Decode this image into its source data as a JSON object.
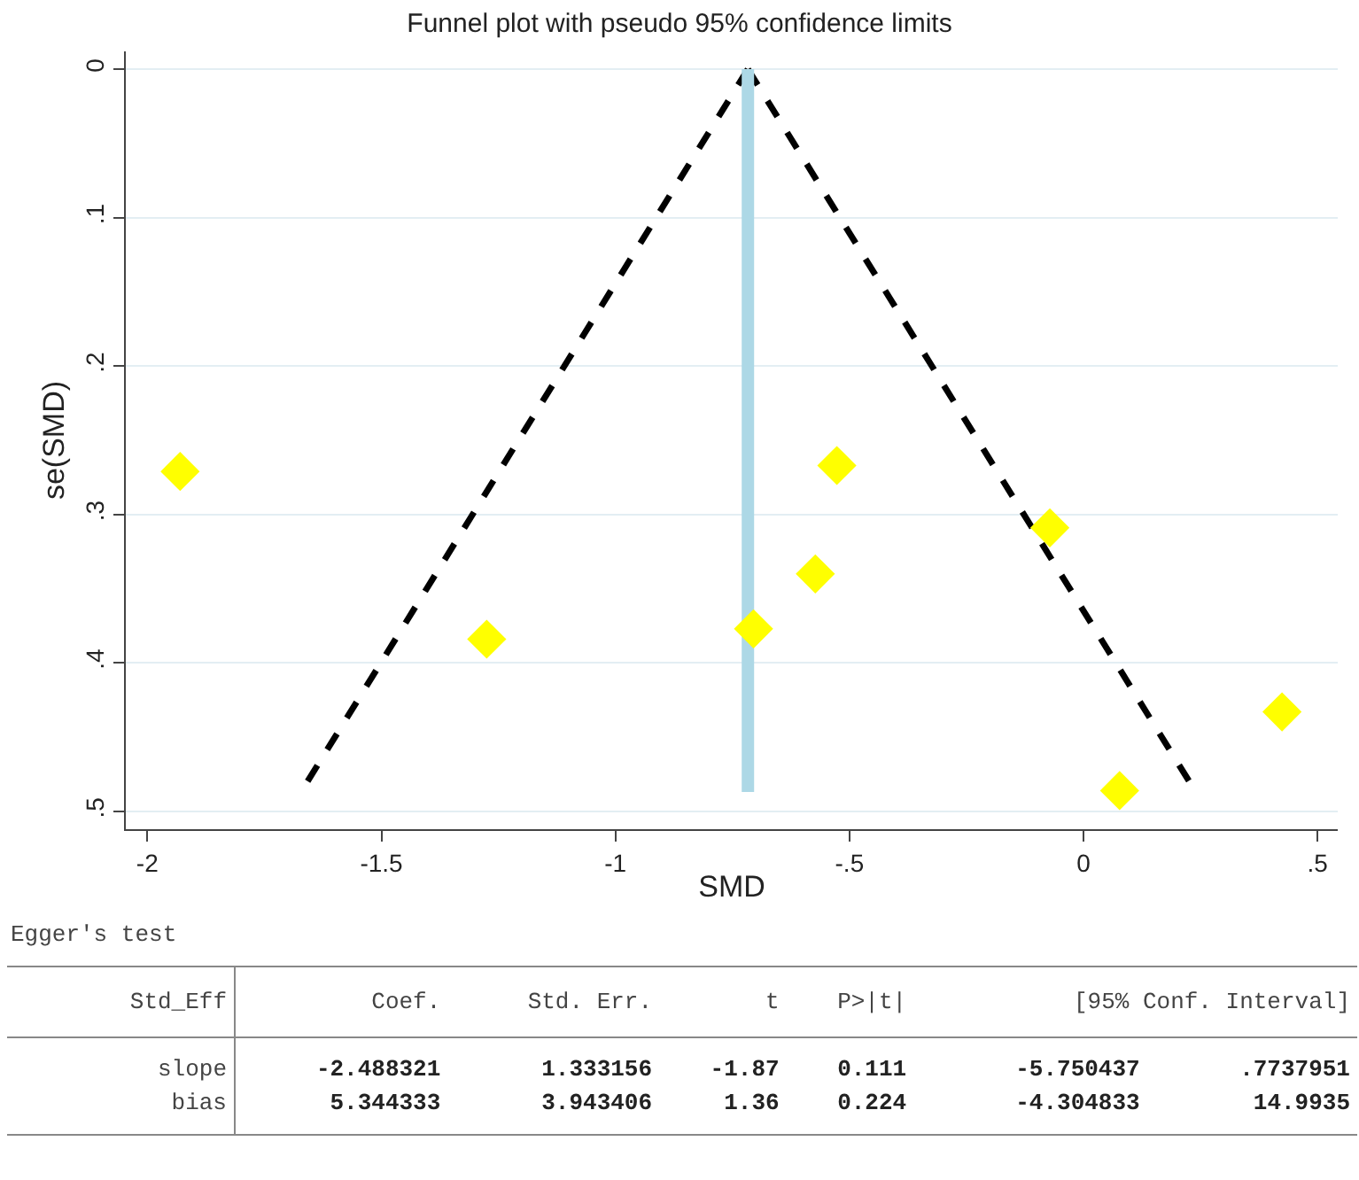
{
  "chart_data": {
    "type": "scatter",
    "title": "Funnel plot with pseudo 95% confidence limits",
    "xlabel": "SMD",
    "ylabel": "se(SMD)",
    "xlim": [
      -2.046,
      0.543
    ],
    "xticks": [
      -2,
      -1.5,
      -1,
      {
        "value": -0.5,
        "label": "-.5"
      },
      0,
      {
        "value": 0.5,
        "label": ".5"
      }
    ],
    "ylim": [
      0.512,
      -0.012
    ],
    "yticks": [
      0,
      {
        "value": 0.1,
        "label": ".1"
      },
      {
        "value": 0.2,
        "label": ".2"
      },
      {
        "value": 0.3,
        "label": ".3"
      },
      {
        "value": 0.4,
        "label": ".4"
      },
      {
        "value": 0.5,
        "label": ".5"
      }
    ],
    "grid": "y",
    "series": [
      {
        "type": "line",
        "color": "#000000",
        "line_style": "dashed",
        "marker": "none",
        "x": [
          -0.717,
          -1.664
        ],
        "values": [
          0,
          0.483
        ]
      },
      {
        "type": "line",
        "color": "#000000",
        "line_style": "dashed",
        "marker": "none",
        "x": [
          -0.717,
          0.232
        ],
        "values": [
          0,
          0.483
        ]
      },
      {
        "type": "line",
        "color": "#add8e6",
        "line_style": "solid",
        "marker": "none",
        "x": [
          -0.717,
          -0.717
        ],
        "values": [
          0,
          0.487
        ]
      },
      {
        "color": "#ffff00",
        "marker": "diamond",
        "x": [
          -1.93,
          -0.527,
          -0.072,
          -0.573,
          -0.705,
          -1.275,
          0.424,
          0.077
        ],
        "values": [
          0.271,
          0.267,
          0.309,
          0.34,
          0.377,
          0.384,
          0.433,
          0.486
        ]
      }
    ],
    "annotations": [
      "Egger's test",
      "Std_Eff",
      "Coef.",
      "Std. Err.",
      "t",
      "P>|t|",
      "[95% Conf. Interval]",
      "slope",
      "-2.488321",
      "1.333156",
      "-1.87",
      "0.111",
      "-5.750437",
      ".7737951",
      "bias",
      "5.344333",
      "3.943406",
      "1.36",
      "0.224",
      "-4.304833",
      "14.9935"
    ]
  }
}
